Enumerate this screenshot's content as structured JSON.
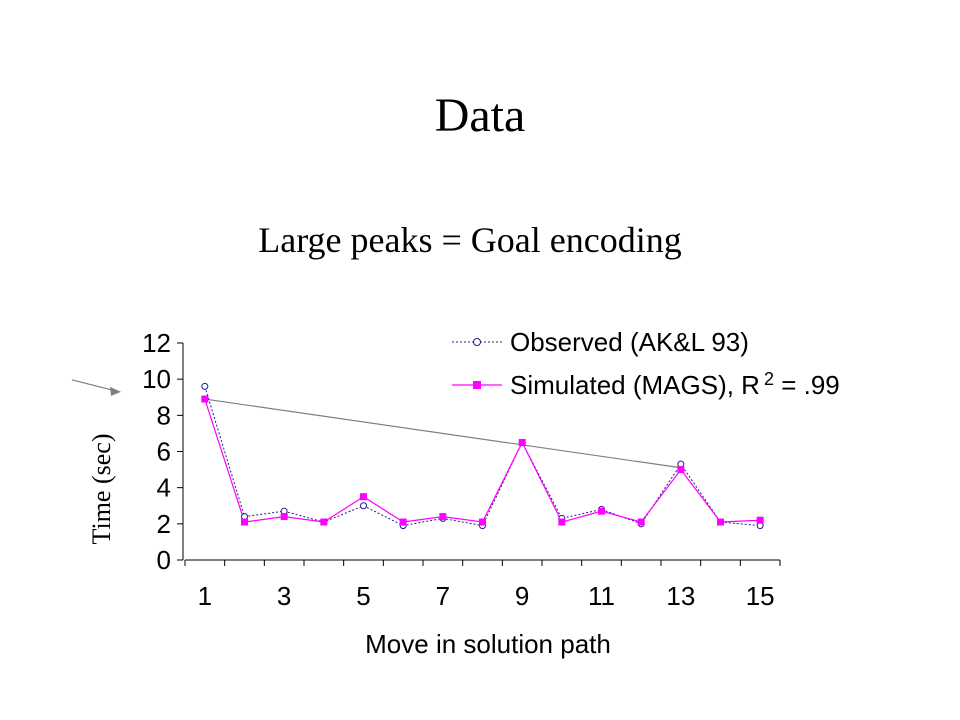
{
  "slide": {
    "title": "Data",
    "subtitle": "Large peaks = Goal encoding"
  },
  "colors": {
    "observed": "#1f1f8f",
    "simulated": "#ff00ff",
    "trend_line": "#808080",
    "axis": "#000000"
  },
  "chart_data": {
    "type": "line",
    "ylabel": "Time (sec)",
    "xlabel": "Move in solution path",
    "ylim": [
      0,
      12
    ],
    "yticks": [
      0,
      2,
      4,
      6,
      8,
      10,
      12
    ],
    "x": [
      1,
      2,
      3,
      4,
      5,
      6,
      7,
      8,
      9,
      10,
      11,
      12,
      13,
      14,
      15
    ],
    "xtick_labels": [
      "1",
      "3",
      "5",
      "7",
      "9",
      "11",
      "13",
      "15"
    ],
    "grid": false,
    "legend_position": "top-right",
    "series": [
      {
        "name": "Observed (AK&L 93)",
        "style": "dotted line, open circle markers",
        "values": [
          9.6,
          2.4,
          2.7,
          2.1,
          3.0,
          1.9,
          2.3,
          1.9,
          6.5,
          2.3,
          2.8,
          2.0,
          5.3,
          2.1,
          1.9
        ]
      },
      {
        "name": "Simulated (MAGS), R",
        "superscript": "2",
        "suffix": " = .99",
        "style": "solid line, filled square markers",
        "values": [
          8.9,
          2.1,
          2.4,
          2.1,
          3.5,
          2.1,
          2.4,
          2.1,
          6.5,
          2.1,
          2.7,
          2.1,
          5.0,
          2.1,
          2.2
        ]
      }
    ],
    "annotations": [
      {
        "type": "trend-line",
        "from": [
          1,
          8.9
        ],
        "to": [
          13,
          5.1
        ]
      },
      {
        "type": "arrow",
        "points_to_y": 9.3
      }
    ]
  }
}
